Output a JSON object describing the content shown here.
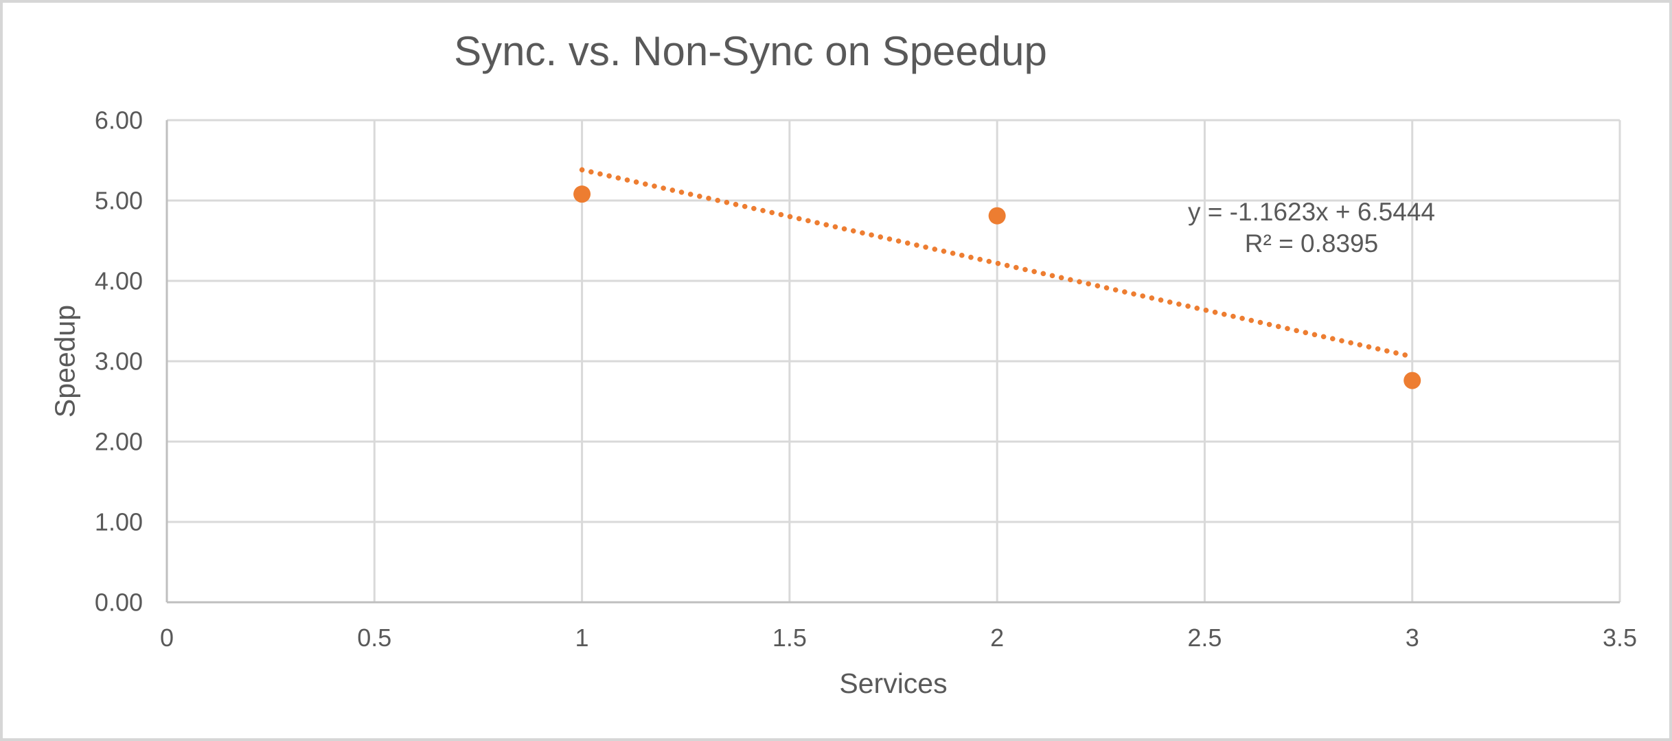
{
  "window": {
    "background": "#FFFFFF",
    "border_color": "#D6D6D6"
  },
  "chart_data": {
    "type": "scatter",
    "title": "Sync. vs. Non-Sync on Speedup",
    "xlabel": "Services",
    "ylabel": "Speedup",
    "xlim": [
      0,
      3.5
    ],
    "ylim": [
      0,
      6
    ],
    "grid": true,
    "legend": {
      "visible": false
    },
    "x_ticks": {
      "values": [
        0,
        0.5,
        1,
        1.5,
        2,
        2.5,
        3,
        3.5
      ],
      "labels": [
        "0",
        "0.5",
        "1",
        "1.5",
        "2",
        "2.5",
        "3",
        "3.5"
      ]
    },
    "y_ticks": {
      "values": [
        0,
        1,
        2,
        3,
        4,
        5,
        6
      ],
      "labels": [
        "0.00",
        "1.00",
        "2.00",
        "3.00",
        "4.00",
        "5.00",
        "6.00"
      ]
    },
    "series": [
      {
        "name": "Speedup",
        "x": [
          1,
          2,
          3
        ],
        "y": [
          5.08,
          4.81,
          2.76
        ],
        "marker": "circle",
        "marker_color": "#ED7D31"
      }
    ],
    "trendline": {
      "type": "linear",
      "slope": -1.1623,
      "intercept": 6.5444,
      "x_range": [
        1,
        3
      ],
      "style": "dotted",
      "color": "#ED7D31",
      "equation_label": "y = -1.1623x + 6.5444",
      "r_squared_label": "R² = 0.8395"
    },
    "colors": {
      "accent": "#ED7D31",
      "gridline": "#D9D9D9",
      "axis_line": "#BFBFBF",
      "text": "#595959"
    }
  }
}
